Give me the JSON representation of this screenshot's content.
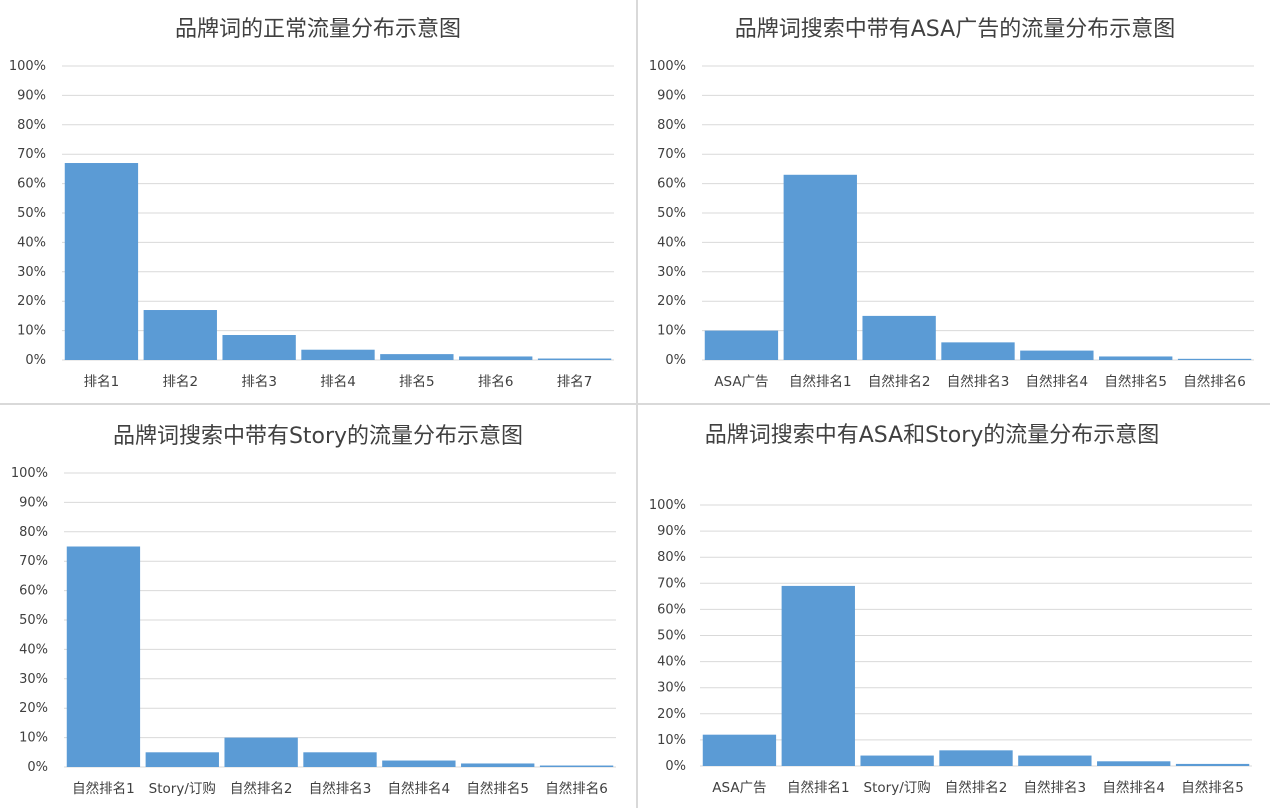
{
  "colors": {
    "bar": "#5b9bd5",
    "grid": "#d9d9d9",
    "text": "#404040"
  },
  "chart_data": [
    {
      "type": "bar",
      "title": "品牌词的正常流量分布示意图",
      "categories": [
        "排名1",
        "排名2",
        "排名3",
        "排名4",
        "排名5",
        "排名6",
        "排名7"
      ],
      "values": [
        0.67,
        0.17,
        0.085,
        0.035,
        0.02,
        0.012,
        0.005
      ],
      "yticks": [
        "0%",
        "10%",
        "20%",
        "30%",
        "40%",
        "50%",
        "60%",
        "70%",
        "80%",
        "90%",
        "100%"
      ],
      "ylim": [
        0,
        1
      ],
      "grid": true
    },
    {
      "type": "bar",
      "title": "品牌词搜索中带有ASA广告的流量分布示意图",
      "categories": [
        "ASA广告",
        "自然排名1",
        "自然排名2",
        "自然排名3",
        "自然排名4",
        "自然排名5",
        "自然排名6"
      ],
      "values": [
        0.1,
        0.63,
        0.15,
        0.06,
        0.032,
        0.012,
        0.004
      ],
      "yticks": [
        "0%",
        "10%",
        "20%",
        "30%",
        "40%",
        "50%",
        "60%",
        "70%",
        "80%",
        "90%",
        "100%"
      ],
      "ylim": [
        0,
        1
      ],
      "grid": true
    },
    {
      "type": "bar",
      "title": "品牌词搜索中带有Story的流量分布示意图",
      "categories": [
        "自然排名1",
        "Story/订购",
        "自然排名2",
        "自然排名3",
        "自然排名4",
        "自然排名5",
        "自然排名6"
      ],
      "values": [
        0.75,
        0.05,
        0.1,
        0.05,
        0.022,
        0.012,
        0.005
      ],
      "yticks": [
        "0%",
        "10%",
        "20%",
        "30%",
        "40%",
        "50%",
        "60%",
        "70%",
        "80%",
        "90%",
        "100%"
      ],
      "ylim": [
        0,
        1
      ],
      "grid": true
    },
    {
      "type": "bar",
      "title": "品牌词搜索中有ASA和Story的流量分布示意图",
      "categories": [
        "ASA广告",
        "自然排名1",
        "Story/订购",
        "自然排名2",
        "自然排名3",
        "自然排名4",
        "自然排名5"
      ],
      "values": [
        0.12,
        0.69,
        0.04,
        0.06,
        0.04,
        0.018,
        0.008
      ],
      "yticks": [
        "0%",
        "10%",
        "20%",
        "30%",
        "40%",
        "50%",
        "60%",
        "70%",
        "80%",
        "90%",
        "100%"
      ],
      "ylim": [
        0,
        1
      ],
      "grid": true
    }
  ]
}
